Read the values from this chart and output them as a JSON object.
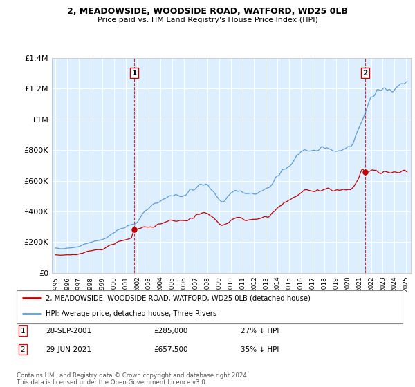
{
  "title": "2, MEADOWSIDE, WOODSIDE ROAD, WATFORD, WD25 0LB",
  "subtitle": "Price paid vs. HM Land Registry's House Price Index (HPI)",
  "ylim": [
    0,
    1400000
  ],
  "yticks": [
    0,
    200000,
    400000,
    600000,
    800000,
    1000000,
    1200000,
    1400000
  ],
  "ytick_labels": [
    "£0",
    "£200K",
    "£400K",
    "£600K",
    "£800K",
    "£1M",
    "£1.2M",
    "£1.4M"
  ],
  "background_color": "#ffffff",
  "plot_bg_color": "#ddeeff",
  "grid_color": "#ffffff",
  "hpi_color": "#5b9bd5",
  "price_color": "#c00000",
  "sale1_date": "28-SEP-2001",
  "sale1_price": 285000,
  "sale1_pct": "27% ↓ HPI",
  "sale2_date": "29-JUN-2021",
  "sale2_price": 657500,
  "sale2_pct": "35% ↓ HPI",
  "legend_label1": "2, MEADOWSIDE, WOODSIDE ROAD, WATFORD, WD25 0LB (detached house)",
  "legend_label2": "HPI: Average price, detached house, Three Rivers",
  "footer": "Contains HM Land Registry data © Crown copyright and database right 2024.\nThis data is licensed under the Open Government Licence v3.0.",
  "xtick_years": [
    1995,
    1996,
    1997,
    1998,
    1999,
    2000,
    2001,
    2002,
    2003,
    2004,
    2005,
    2006,
    2007,
    2008,
    2009,
    2010,
    2011,
    2012,
    2013,
    2014,
    2015,
    2016,
    2017,
    2018,
    2019,
    2020,
    2021,
    2022,
    2023,
    2024,
    2025
  ],
  "sale1_x": 2001.75,
  "sale2_x": 2021.5,
  "sale1_y": 285000,
  "sale2_y": 657500
}
